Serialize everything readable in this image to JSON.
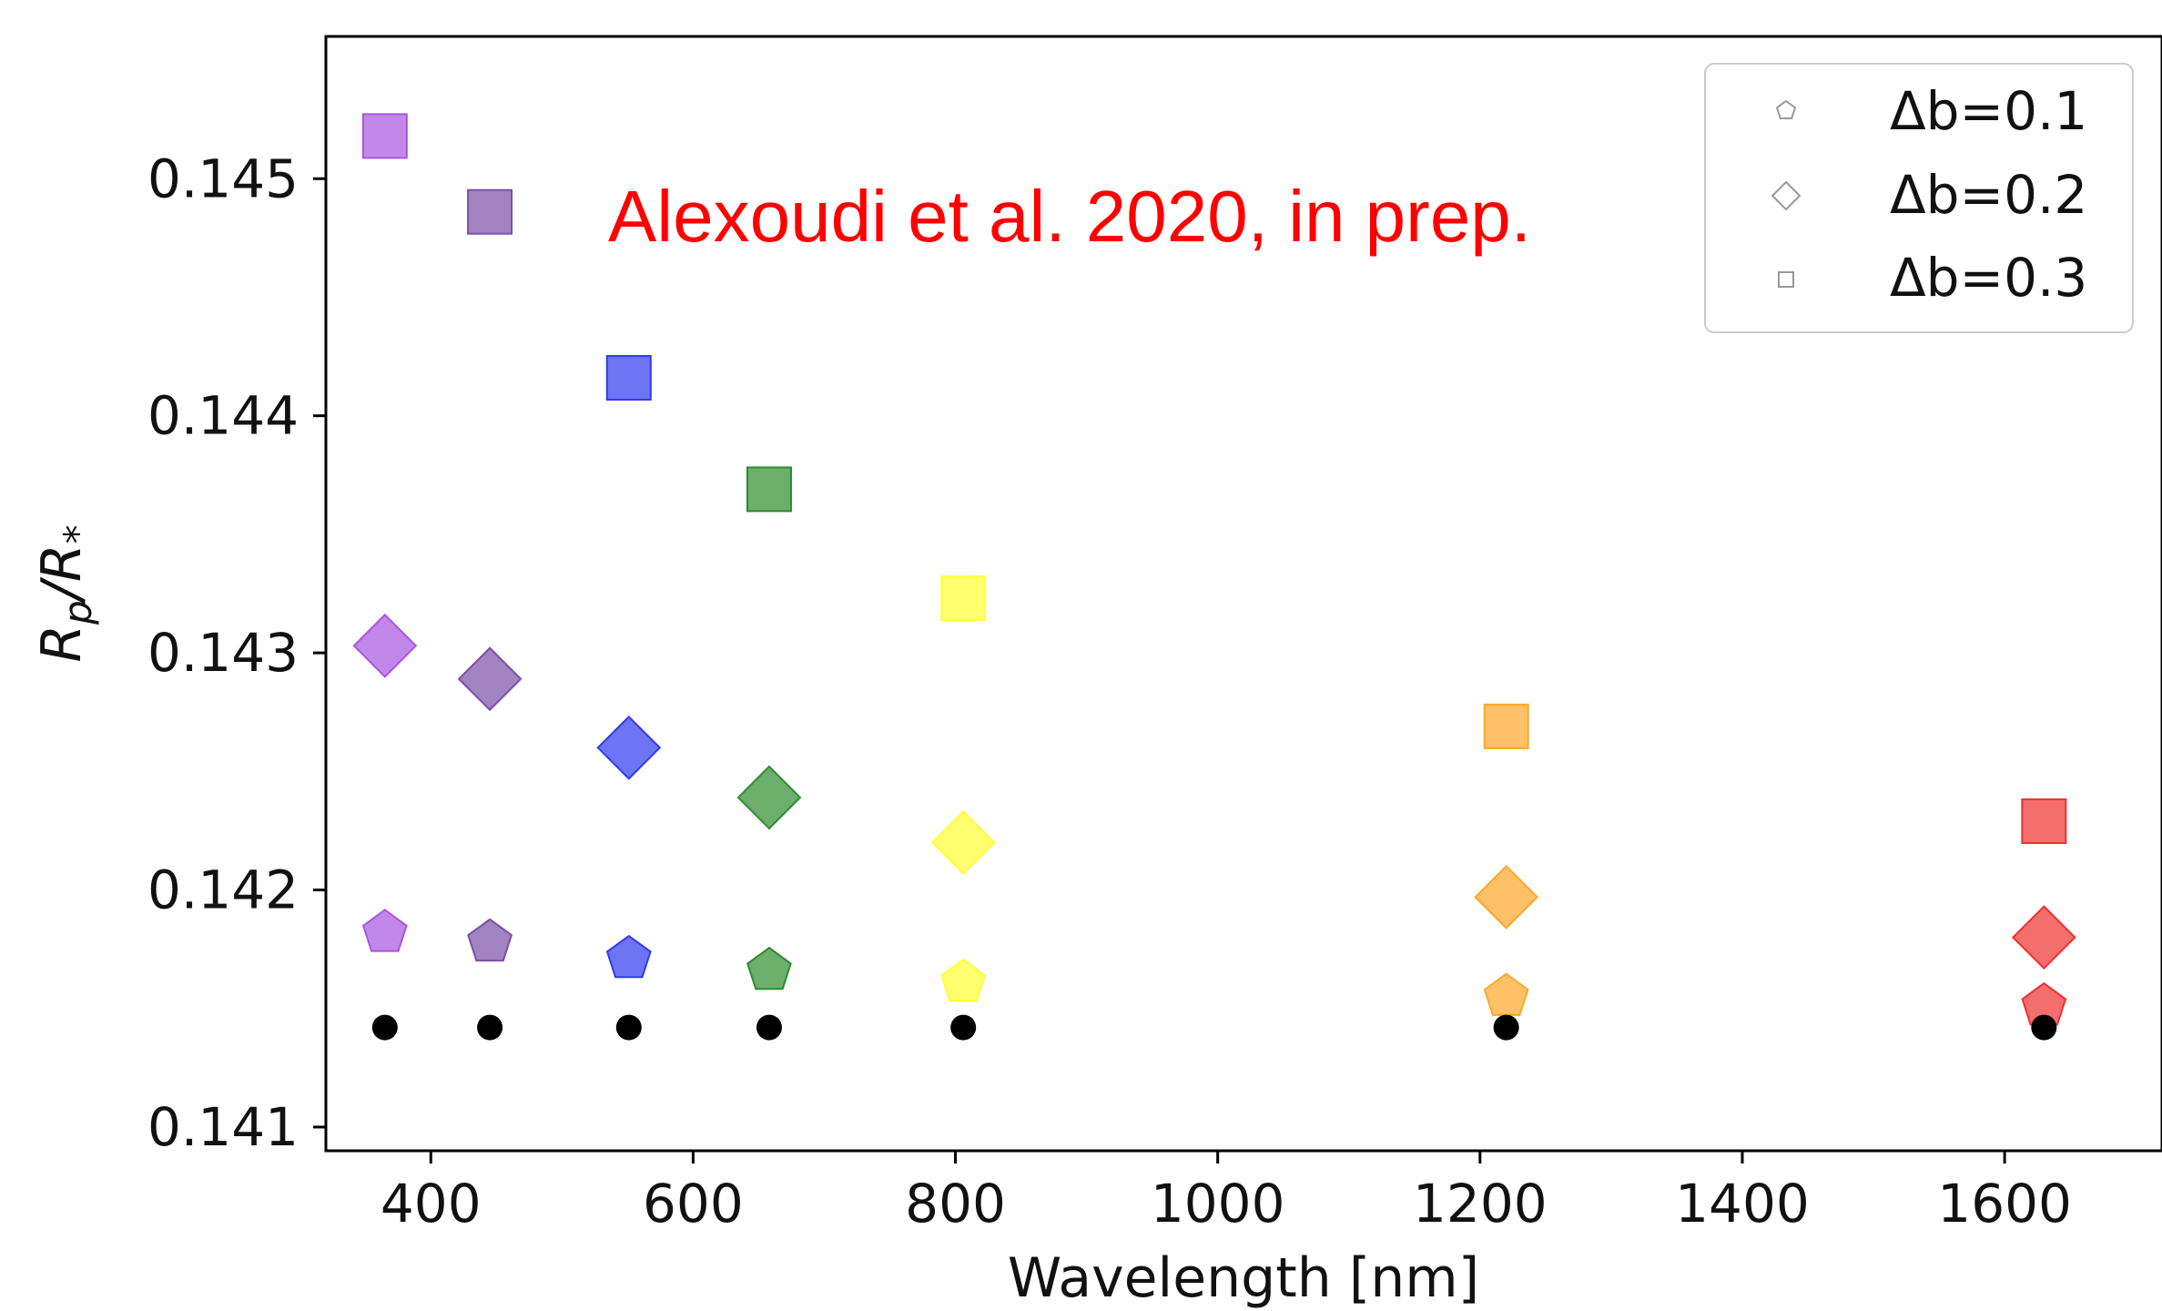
{
  "chart_data": {
    "type": "scatter",
    "xlabel": "Wavelength [nm]",
    "ylabel_parts": {
      "r1": "R",
      "sub1": "p",
      "slash": "/",
      "r2": "R",
      "sub2": "*"
    },
    "xlim": [
      320,
      1720
    ],
    "ylim": [
      0.1409,
      0.1456
    ],
    "xticks": [
      400,
      600,
      800,
      1000,
      1200,
      1400,
      1600
    ],
    "xtick_labels": [
      "400",
      "600",
      "800",
      "1000",
      "1200",
      "1400",
      "1600"
    ],
    "yticks": [
      0.141,
      0.142,
      0.143,
      0.144,
      0.145
    ],
    "ytick_labels": [
      "0.141",
      "0.142",
      "0.143",
      "0.144",
      "0.145"
    ],
    "annotation": {
      "text": "Alexoudi et al. 2020, in prep.",
      "color": "#ff0000"
    },
    "legend": {
      "placement": "top-right",
      "entries": [
        {
          "marker": "pentagon",
          "label": "Δb=0.1"
        },
        {
          "marker": "diamond",
          "label": "Δb=0.2"
        },
        {
          "marker": "square",
          "label": "Δb=0.3"
        }
      ]
    },
    "wavelengths": [
      365,
      445,
      551,
      658,
      806,
      1220,
      1630
    ],
    "point_colors": [
      "#a855e0",
      "#7b4fa6",
      "#2f3bf0",
      "#2e8b2e",
      "#ffff33",
      "#ffa726",
      "#f03030"
    ],
    "series": [
      {
        "marker": "circle",
        "values": [
          0.14142,
          0.14142,
          0.14142,
          0.14142,
          0.14142,
          0.14142,
          0.14142
        ]
      },
      {
        "marker": "pentagon",
        "values": [
          0.14182,
          0.14178,
          0.14171,
          0.14166,
          0.14161,
          0.14155,
          0.14151
        ]
      },
      {
        "marker": "diamond",
        "values": [
          0.14303,
          0.14289,
          0.1426,
          0.14239,
          0.1422,
          0.14197,
          0.1418
        ]
      },
      {
        "marker": "square",
        "values": [
          0.14518,
          0.14486,
          0.14416,
          0.14369,
          0.14323,
          0.14269,
          0.14229
        ]
      }
    ]
  }
}
